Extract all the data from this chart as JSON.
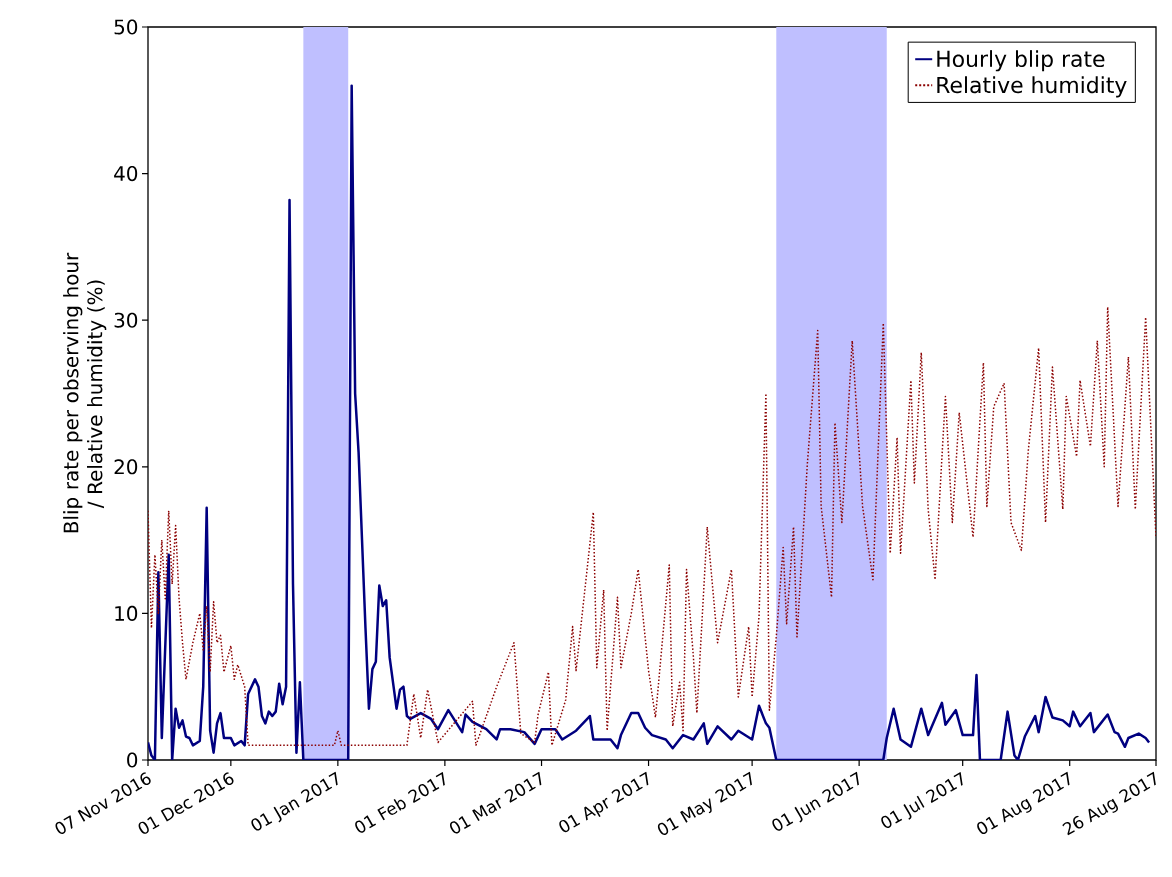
{
  "chart_data": {
    "type": "line",
    "ylabel": "Blip rate per observing hour / Relative humidity (%)",
    "xlim": [
      "2016-11-07",
      "2017-08-26"
    ],
    "xticks": [
      {
        "value": "2016-11-07",
        "label": "07 Nov 2016"
      },
      {
        "value": "2016-12-01",
        "label": "01 Dec 2016"
      },
      {
        "value": "2017-01-01",
        "label": "01 Jan 2017"
      },
      {
        "value": "2017-02-01",
        "label": "01 Feb 2017"
      },
      {
        "value": "2017-03-01",
        "label": "01 Mar 2017"
      },
      {
        "value": "2017-04-01",
        "label": "01 Apr 2017"
      },
      {
        "value": "2017-05-01",
        "label": "01 May 2017"
      },
      {
        "value": "2017-06-01",
        "label": "01 Jun 2017"
      },
      {
        "value": "2017-07-01",
        "label": "01 Jul 2017"
      },
      {
        "value": "2017-08-01",
        "label": "01 Aug 2017"
      },
      {
        "value": "2017-08-26",
        "label": "26 Aug 2017"
      }
    ],
    "ylim": [
      0,
      50
    ],
    "yticks": [
      0,
      10,
      20,
      30,
      40,
      50
    ],
    "legend": "top right",
    "grid": false,
    "bands": [
      {
        "axis": "x",
        "from": "2016-12-22",
        "to": "2017-01-04",
        "color": "#bfbfff"
      },
      {
        "axis": "x",
        "from": "2017-05-08",
        "to": "2017-06-09",
        "color": "#bfbfff"
      }
    ],
    "series": [
      {
        "name": "Hourly blip rate",
        "color": "#000080",
        "line_style": "solid",
        "x": [
          "2016-11-07",
          "2016-11-08",
          "2016-11-09",
          "2016-11-10",
          "2016-11-11",
          "2016-11-13",
          "2016-11-14",
          "2016-11-15",
          "2016-11-16",
          "2016-11-17",
          "2016-11-18",
          "2016-11-19",
          "2016-11-20",
          "2016-11-22",
          "2016-11-23",
          "2016-11-24",
          "2016-11-25",
          "2016-11-26",
          "2016-11-27",
          "2016-11-28",
          "2016-11-29",
          "2016-12-01",
          "2016-12-02",
          "2016-12-04",
          "2016-12-05",
          "2016-12-06",
          "2016-12-08",
          "2016-12-09",
          "2016-12-10",
          "2016-12-11",
          "2016-12-12",
          "2016-12-13",
          "2016-12-14",
          "2016-12-15",
          "2016-12-16",
          "2016-12-17",
          "2016-12-18",
          "2016-12-19",
          "2016-12-20",
          "2016-12-21",
          "2016-12-22",
          "2017-01-04",
          "2017-01-05",
          "2017-01-06",
          "2017-01-07",
          "2017-01-09",
          "2017-01-10",
          "2017-01-11",
          "2017-01-12",
          "2017-01-13",
          "2017-01-14",
          "2017-01-15",
          "2017-01-16",
          "2017-01-18",
          "2017-01-19",
          "2017-01-20",
          "2017-01-21",
          "2017-01-22",
          "2017-01-25",
          "2017-01-28",
          "2017-01-30",
          "2017-02-02",
          "2017-02-06",
          "2017-02-07",
          "2017-02-09",
          "2017-02-13",
          "2017-02-16",
          "2017-02-17",
          "2017-02-20",
          "2017-02-24",
          "2017-02-27",
          "2017-03-01",
          "2017-03-05",
          "2017-03-07",
          "2017-03-11",
          "2017-03-15",
          "2017-03-16",
          "2017-03-21",
          "2017-03-23",
          "2017-03-24",
          "2017-03-27",
          "2017-03-29",
          "2017-03-31",
          "2017-04-02",
          "2017-04-06",
          "2017-04-08",
          "2017-04-11",
          "2017-04-14",
          "2017-04-17",
          "2017-04-18",
          "2017-04-21",
          "2017-04-25",
          "2017-04-27",
          "2017-05-01",
          "2017-05-03",
          "2017-05-05",
          "2017-05-06",
          "2017-05-08",
          "2017-06-08",
          "2017-06-09",
          "2017-06-11",
          "2017-06-13",
          "2017-06-16",
          "2017-06-19",
          "2017-06-21",
          "2017-06-25",
          "2017-06-26",
          "2017-06-29",
          "2017-07-01",
          "2017-07-04",
          "2017-07-05",
          "2017-07-06",
          "2017-07-12",
          "2017-07-14",
          "2017-07-16",
          "2017-07-17",
          "2017-07-19",
          "2017-07-22",
          "2017-07-23",
          "2017-07-25",
          "2017-07-27",
          "2017-07-30",
          "2017-08-01",
          "2017-08-02",
          "2017-08-04",
          "2017-08-07",
          "2017-08-08",
          "2017-08-12",
          "2017-08-14",
          "2017-08-15",
          "2017-08-17",
          "2017-08-18",
          "2017-08-21",
          "2017-08-23",
          "2017-08-24"
        ],
        "values": [
          1.2,
          0.3,
          0,
          12.8,
          1.5,
          14,
          0,
          3.5,
          2.2,
          2.7,
          1.6,
          1.5,
          1.0,
          1.3,
          5,
          17.2,
          2,
          0.5,
          2.5,
          3.2,
          1.5,
          1.5,
          1.0,
          1.3,
          1.0,
          4.5,
          5.5,
          5,
          3,
          2.5,
          3.3,
          3,
          3.3,
          5.2,
          3.8,
          5,
          38.2,
          12,
          0.5,
          5.3,
          0,
          0,
          46,
          25,
          21,
          9,
          3.5,
          6.2,
          6.7,
          11.9,
          10.5,
          10.9,
          7,
          3.5,
          4.8,
          5,
          3,
          2.8,
          3.2,
          2.8,
          2.1,
          3.4,
          1.9,
          3.1,
          2.6,
          2.1,
          1.4,
          2.1,
          2.1,
          1.9,
          1.1,
          2.1,
          2.1,
          1.4,
          2.0,
          3.0,
          1.4,
          1.4,
          0.8,
          1.7,
          3.2,
          3.2,
          2.2,
          1.7,
          1.4,
          0.8,
          1.7,
          1.4,
          2.5,
          1.1,
          2.3,
          1.4,
          2.0,
          1.4,
          3.7,
          2.5,
          2.2,
          0,
          0,
          1.5,
          3.5,
          1.4,
          0.9,
          3.5,
          1.7,
          3.9,
          2.4,
          3.4,
          1.7,
          1.7,
          5.8,
          0,
          0,
          3.3,
          0.3,
          0,
          1.6,
          3.0,
          1.9,
          4.3,
          2.9,
          2.7,
          2.3,
          3.3,
          2.3,
          3.2,
          1.9,
          3.1,
          1.9,
          1.8,
          0.9,
          1.5,
          1.8,
          1.5,
          1.2
        ]
      },
      {
        "name": "Relative humidity",
        "color": "#8b0000",
        "line_style": "dotted",
        "x": [
          "2016-11-07",
          "2016-11-08",
          "2016-11-09",
          "2016-11-10",
          "2016-11-11",
          "2016-11-12",
          "2016-11-13",
          "2016-11-14",
          "2016-11-15",
          "2016-11-16",
          "2016-11-17",
          "2016-11-18",
          "2016-11-20",
          "2016-11-22",
          "2016-11-23",
          "2016-11-24",
          "2016-11-25",
          "2016-11-26",
          "2016-11-27",
          "2016-11-28",
          "2016-11-29",
          "2016-12-01",
          "2016-12-02",
          "2016-12-03",
          "2016-12-05",
          "2016-12-06",
          "2016-12-31",
          "2017-01-01",
          "2017-01-02",
          "2017-01-21",
          "2017-01-23",
          "2017-01-25",
          "2017-01-27",
          "2017-01-30",
          "2017-02-09",
          "2017-02-10",
          "2017-02-16",
          "2017-02-21",
          "2017-02-23",
          "2017-02-27",
          "2017-02-28",
          "2017-03-03",
          "2017-03-04",
          "2017-03-08",
          "2017-03-10",
          "2017-03-11",
          "2017-03-16",
          "2017-03-17",
          "2017-03-19",
          "2017-03-20",
          "2017-03-23",
          "2017-03-24",
          "2017-03-27",
          "2017-03-29",
          "2017-04-01",
          "2017-04-03",
          "2017-04-07",
          "2017-04-08",
          "2017-04-10",
          "2017-04-11",
          "2017-04-12",
          "2017-04-14",
          "2017-04-15",
          "2017-04-18",
          "2017-04-21",
          "2017-04-25",
          "2017-04-27",
          "2017-04-30",
          "2017-05-01",
          "2017-05-03",
          "2017-05-05",
          "2017-05-06",
          "2017-05-08",
          "2017-05-10",
          "2017-05-11",
          "2017-05-13",
          "2017-05-14",
          "2017-05-17",
          "2017-05-20",
          "2017-05-21",
          "2017-05-24",
          "2017-05-25",
          "2017-05-27",
          "2017-05-30",
          "2017-06-02",
          "2017-06-05",
          "2017-06-08",
          "2017-06-10",
          "2017-06-12",
          "2017-06-13",
          "2017-06-16",
          "2017-06-17",
          "2017-06-19",
          "2017-06-21",
          "2017-06-23",
          "2017-06-25",
          "2017-06-26",
          "2017-06-28",
          "2017-06-30",
          "2017-07-04",
          "2017-07-07",
          "2017-07-08",
          "2017-07-10",
          "2017-07-13",
          "2017-07-15",
          "2017-07-18",
          "2017-07-20",
          "2017-07-23",
          "2017-07-25",
          "2017-07-27",
          "2017-07-30",
          "2017-07-31",
          "2017-08-03",
          "2017-08-04",
          "2017-08-07",
          "2017-08-09",
          "2017-08-11",
          "2017-08-12",
          "2017-08-15",
          "2017-08-18",
          "2017-08-20",
          "2017-08-23",
          "2017-08-26"
        ],
        "values": [
          17,
          9,
          14,
          10,
          15,
          11,
          17,
          12,
          16,
          11,
          8,
          5.5,
          8,
          10,
          7.5,
          10.5,
          6,
          10.8,
          8,
          8.5,
          6,
          7.8,
          5.5,
          6.5,
          5,
          1,
          1,
          2,
          1,
          1,
          4.5,
          1.5,
          4.8,
          1.2,
          4.0,
          1.0,
          5.0,
          8.0,
          1.8,
          1.2,
          3.1,
          6.0,
          1.0,
          4.1,
          9.1,
          6.1,
          16.9,
          6.3,
          11.6,
          2.0,
          11.1,
          6.3,
          10.0,
          13.0,
          6.1,
          2.9,
          13.3,
          2.3,
          5.3,
          2.0,
          13.0,
          7.0,
          3.2,
          15.9,
          8.0,
          13.0,
          4.3,
          9.1,
          4.3,
          9.8,
          25.0,
          3.4,
          8.4,
          14.5,
          9.3,
          15.9,
          8.4,
          20.2,
          29.3,
          17.3,
          11.1,
          23.0,
          16.2,
          28.6,
          17.3,
          12.3,
          29.8,
          14.1,
          22.0,
          14.1,
          25.9,
          18.9,
          27.8,
          17.1,
          12.3,
          20.7,
          24.8,
          16.2,
          23.7,
          15.2,
          27.1,
          17.3,
          24.1,
          25.7,
          16.2,
          14.3,
          21.1,
          28.1,
          16.2,
          26.8,
          17.1,
          24.8,
          20.7,
          25.9,
          21.4,
          28.6,
          20.0,
          30.9,
          17.3,
          27.5,
          17.1,
          30.2,
          15.2
        ]
      }
    ]
  }
}
